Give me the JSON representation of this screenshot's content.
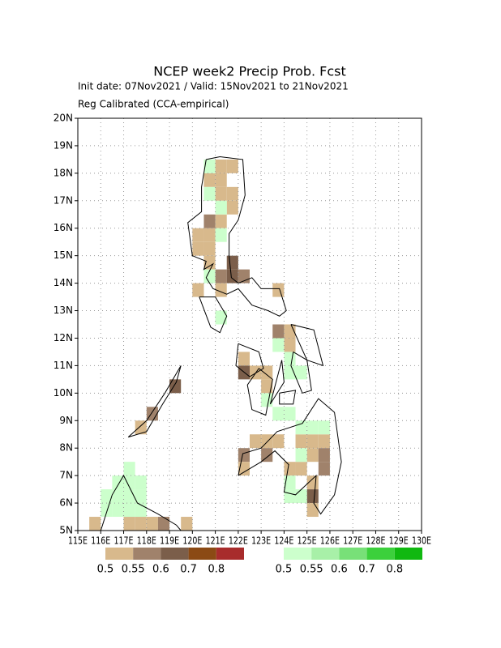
{
  "chart_data": {
    "type": "gridmap",
    "title": "NCEP week2 Precip Prob. Fcst",
    "subtitle": "Init date: 07Nov2021 / Valid: 15Nov2021 to 21Nov2021",
    "note": "Reg Calibrated (CCA-empirical)",
    "xlim": [
      115,
      130
    ],
    "ylim": [
      5,
      20
    ],
    "cell_size": 0.5,
    "grid": true,
    "xticks": [
      {
        "value": 115,
        "label": "115E"
      },
      {
        "value": 116,
        "label": "116E"
      },
      {
        "value": 117,
        "label": "117E"
      },
      {
        "value": 118,
        "label": "118E"
      },
      {
        "value": 119,
        "label": "119E"
      },
      {
        "value": 120,
        "label": "120E"
      },
      {
        "value": 121,
        "label": "121E"
      },
      {
        "value": 122,
        "label": "122E"
      },
      {
        "value": 123,
        "label": "123E"
      },
      {
        "value": 124,
        "label": "124E"
      },
      {
        "value": 125,
        "label": "125E"
      },
      {
        "value": 126,
        "label": "126E"
      },
      {
        "value": 127,
        "label": "127E"
      },
      {
        "value": 128,
        "label": "128E"
      },
      {
        "value": 129,
        "label": "129E"
      },
      {
        "value": 130,
        "label": "130E"
      }
    ],
    "yticks": [
      {
        "value": 5,
        "label": "5N"
      },
      {
        "value": 6,
        "label": "6N"
      },
      {
        "value": 7,
        "label": "7N"
      },
      {
        "value": 8,
        "label": "8N"
      },
      {
        "value": 9,
        "label": "9N"
      },
      {
        "value": 10,
        "label": "10N"
      },
      {
        "value": 11,
        "label": "11N"
      },
      {
        "value": 12,
        "label": "12N"
      },
      {
        "value": 13,
        "label": "13N"
      },
      {
        "value": 14,
        "label": "14N"
      },
      {
        "value": 15,
        "label": "15N"
      },
      {
        "value": 16,
        "label": "16N"
      },
      {
        "value": 17,
        "label": "17N"
      },
      {
        "value": 18,
        "label": "18N"
      },
      {
        "value": 19,
        "label": "19N"
      },
      {
        "value": 20,
        "label": "20N"
      }
    ],
    "scales": [
      {
        "levels": [
          0.5,
          0.55,
          0.6,
          0.7,
          0.8
        ],
        "colors": [
          "#d8b98c",
          "#a0826b",
          "#7b5e4a",
          "#8b4a14",
          "#a82c2c"
        ],
        "cells": [
          [
            121,
            18,
            0.52
          ],
          [
            121.5,
            18,
            0.52
          ],
          [
            120.5,
            17.5,
            0.52
          ],
          [
            121,
            17.5,
            0.52
          ],
          [
            121.5,
            17,
            0.52
          ],
          [
            121,
            17,
            0.52
          ],
          [
            121.5,
            16.5,
            0.52
          ],
          [
            120.5,
            16,
            0.57
          ],
          [
            121,
            16,
            0.52
          ],
          [
            120,
            15.5,
            0.52
          ],
          [
            120.5,
            15.5,
            0.52
          ],
          [
            120,
            15,
            0.52
          ],
          [
            120.5,
            15,
            0.52
          ],
          [
            121.5,
            14.5,
            0.62
          ],
          [
            121,
            14,
            0.57
          ],
          [
            121.5,
            14,
            0.62
          ],
          [
            120.5,
            14.5,
            0.52
          ],
          [
            122,
            14,
            0.57
          ],
          [
            120,
            13.5,
            0.52
          ],
          [
            121,
            13.5,
            0.52
          ],
          [
            123.5,
            13.5,
            0.52
          ],
          [
            123.5,
            12,
            0.57
          ],
          [
            124,
            12,
            0.52
          ],
          [
            124,
            11.5,
            0.52
          ],
          [
            122,
            11,
            0.52
          ],
          [
            122,
            10.5,
            0.62
          ],
          [
            122.5,
            10.5,
            0.52
          ],
          [
            123,
            10.5,
            0.52
          ],
          [
            123,
            10,
            0.52
          ],
          [
            119,
            10,
            0.62
          ],
          [
            118,
            9,
            0.57
          ],
          [
            117.5,
            8.5,
            0.52
          ],
          [
            122.5,
            8,
            0.52
          ],
          [
            123,
            8,
            0.52
          ],
          [
            123.5,
            8,
            0.52
          ],
          [
            124.5,
            8,
            0.52
          ],
          [
            125,
            8,
            0.52
          ],
          [
            125.5,
            8,
            0.52
          ],
          [
            122,
            7.5,
            0.57
          ],
          [
            123,
            7.5,
            0.57
          ],
          [
            125,
            7.5,
            0.52
          ],
          [
            125.5,
            7.5,
            0.57
          ],
          [
            122,
            7,
            0.52
          ],
          [
            124,
            7,
            0.52
          ],
          [
            124.5,
            7,
            0.52
          ],
          [
            125.5,
            7,
            0.57
          ],
          [
            125,
            6.5,
            0.52
          ],
          [
            125,
            6,
            0.62
          ],
          [
            125,
            5.5,
            0.52
          ],
          [
            115.5,
            5,
            0.52
          ],
          [
            117,
            5,
            0.52
          ],
          [
            117.5,
            5,
            0.52
          ],
          [
            118,
            5,
            0.52
          ],
          [
            118.5,
            5,
            0.57
          ],
          [
            119.5,
            5,
            0.52
          ]
        ]
      },
      {
        "levels": [
          0.5,
          0.55,
          0.6,
          0.7,
          0.8
        ],
        "colors": [
          "#ccffcc",
          "#a8f0a8",
          "#78e078",
          "#3cd03c",
          "#10b810"
        ],
        "cells": [
          [
            120.5,
            18,
            0.52
          ],
          [
            120.5,
            17,
            0.52
          ],
          [
            121,
            16.5,
            0.52
          ],
          [
            121,
            15.5,
            0.52
          ],
          [
            120.5,
            14,
            0.52
          ],
          [
            121,
            12.5,
            0.52
          ],
          [
            123.5,
            11.5,
            0.52
          ],
          [
            124,
            11,
            0.52
          ],
          [
            124.5,
            10.5,
            0.52
          ],
          [
            124,
            10.5,
            0.52
          ],
          [
            123,
            9.5,
            0.52
          ],
          [
            123.5,
            9,
            0.52
          ],
          [
            124,
            9,
            0.52
          ],
          [
            124.5,
            8.5,
            0.52
          ],
          [
            125,
            8.5,
            0.52
          ],
          [
            125.5,
            8.5,
            0.52
          ],
          [
            124.5,
            7.5,
            0.52
          ],
          [
            124,
            6.5,
            0.52
          ],
          [
            124,
            6,
            0.52
          ],
          [
            124.5,
            6,
            0.52
          ],
          [
            116,
            6,
            0.52
          ],
          [
            116.5,
            6,
            0.52
          ],
          [
            116.5,
            6.5,
            0.52
          ],
          [
            117,
            6.5,
            0.52
          ],
          [
            117,
            7,
            0.52
          ],
          [
            117.5,
            6,
            0.52
          ],
          [
            117,
            6,
            0.52
          ],
          [
            117.5,
            6.5,
            0.52
          ],
          [
            116,
            5.5,
            0.52
          ],
          [
            116.5,
            5.5,
            0.52
          ],
          [
            117,
            5.5,
            0.52
          ],
          [
            117.5,
            5.5,
            0.52
          ]
        ]
      }
    ]
  }
}
